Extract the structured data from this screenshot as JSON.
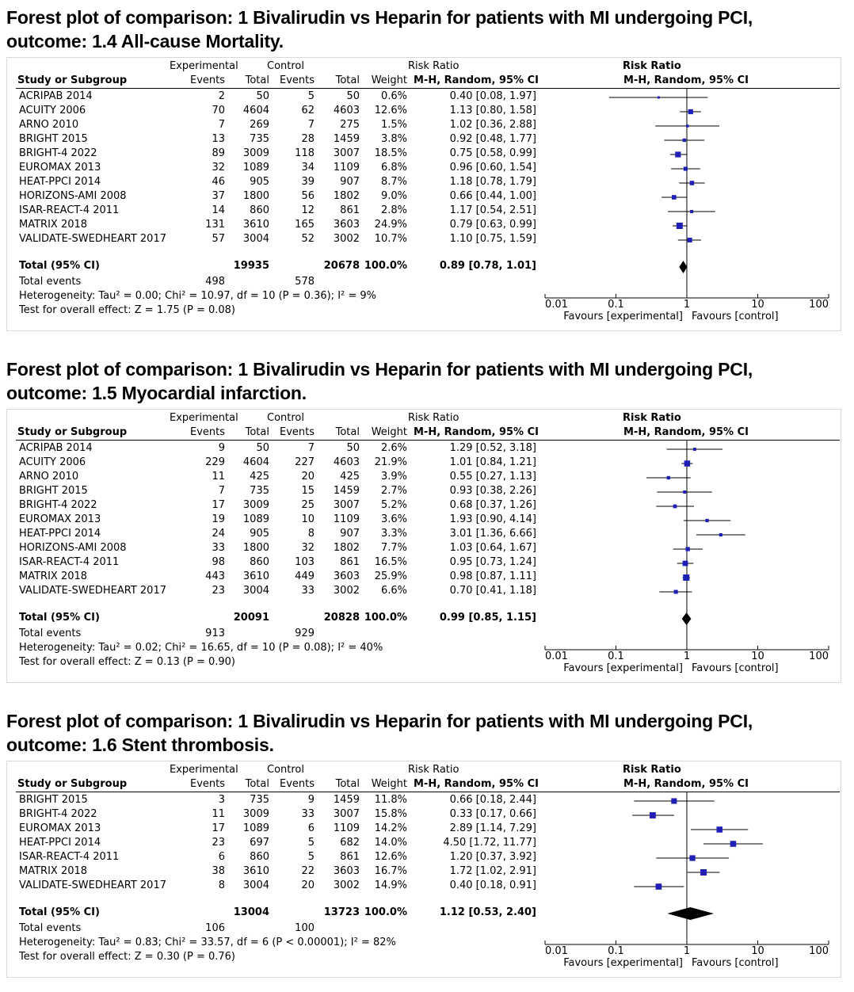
{
  "headers": {
    "experimental": "Experimental",
    "control": "Control",
    "risk_ratio": "Risk Ratio",
    "study": "Study or Subgroup",
    "events": "Events",
    "total": "Total",
    "weight": "Weight",
    "method": "M-H, Random, 95% CI",
    "favours_exp": "Favours [experimental]",
    "favours_ctrl": "Favours [control]",
    "total_events_label": "Total events",
    "axis_ticks": [
      "0.01",
      "0.1",
      "1",
      "10",
      "100"
    ]
  },
  "plots": [
    {
      "title_line1": "Forest plot of comparison: 1 Bivalirudin vs Heparin for patients with MI undergoing PCI,",
      "title_line2": "outcome: 1.4 All-cause Mortality.",
      "studies": [
        {
          "name": "ACRIPAB 2014",
          "exp_events": "2",
          "exp_total": "50",
          "ctrl_events": "5",
          "ctrl_total": "50",
          "weight": "0.6%",
          "ci_text": "0.40 [0.08, 1.97]"
        },
        {
          "name": "ACUITY 2006",
          "exp_events": "70",
          "exp_total": "4604",
          "ctrl_events": "62",
          "ctrl_total": "4603",
          "weight": "12.6%",
          "ci_text": "1.13 [0.80, 1.58]"
        },
        {
          "name": "ARNO 2010",
          "exp_events": "7",
          "exp_total": "269",
          "ctrl_events": "7",
          "ctrl_total": "275",
          "weight": "1.5%",
          "ci_text": "1.02 [0.36, 2.88]"
        },
        {
          "name": "BRIGHT 2015",
          "exp_events": "13",
          "exp_total": "735",
          "ctrl_events": "28",
          "ctrl_total": "1459",
          "weight": "3.8%",
          "ci_text": "0.92 [0.48, 1.77]"
        },
        {
          "name": "BRIGHT-4 2022",
          "exp_events": "89",
          "exp_total": "3009",
          "ctrl_events": "118",
          "ctrl_total": "3007",
          "weight": "18.5%",
          "ci_text": "0.75 [0.58, 0.99]"
        },
        {
          "name": "EUROMAX 2013",
          "exp_events": "32",
          "exp_total": "1089",
          "ctrl_events": "34",
          "ctrl_total": "1109",
          "weight": "6.8%",
          "ci_text": "0.96 [0.60, 1.54]"
        },
        {
          "name": "HEAT-PPCI 2014",
          "exp_events": "46",
          "exp_total": "905",
          "ctrl_events": "39",
          "ctrl_total": "907",
          "weight": "8.7%",
          "ci_text": "1.18 [0.78, 1.79]"
        },
        {
          "name": "HORIZONS-AMI 2008",
          "exp_events": "37",
          "exp_total": "1800",
          "ctrl_events": "56",
          "ctrl_total": "1802",
          "weight": "9.0%",
          "ci_text": "0.66 [0.44, 1.00]"
        },
        {
          "name": "ISAR-REACT-4 2011",
          "exp_events": "14",
          "exp_total": "860",
          "ctrl_events": "12",
          "ctrl_total": "861",
          "weight": "2.8%",
          "ci_text": "1.17 [0.54, 2.51]"
        },
        {
          "name": "MATRIX 2018",
          "exp_events": "131",
          "exp_total": "3610",
          "ctrl_events": "165",
          "ctrl_total": "3603",
          "weight": "24.9%",
          "ci_text": "0.79 [0.63, 0.99]"
        },
        {
          "name": "VALIDATE-SWEDHEART 2017",
          "exp_events": "57",
          "exp_total": "3004",
          "ctrl_events": "52",
          "ctrl_total": "3002",
          "weight": "10.7%",
          "ci_text": "1.10 [0.75, 1.59]"
        }
      ],
      "total": {
        "label": "Total (95% CI)",
        "exp_total": "19935",
        "ctrl_total": "20678",
        "weight": "100.0%",
        "ci_text": "0.89 [0.78, 1.01]"
      },
      "total_events": {
        "exp": "498",
        "ctrl": "578"
      },
      "heterogeneity": "Heterogeneity: Tau² = 0.00; Chi² = 10.97, df = 10 (P = 0.36); I² = 9%",
      "overall_effect": "Test for overall effect: Z = 1.75 (P = 0.08)"
    },
    {
      "title_line1": "Forest plot of comparison: 1 Bivalirudin vs Heparin for patients with MI undergoing PCI,",
      "title_line2": "outcome: 1.5 Myocardial infarction.",
      "studies": [
        {
          "name": "ACRIPAB 2014",
          "exp_events": "9",
          "exp_total": "50",
          "ctrl_events": "7",
          "ctrl_total": "50",
          "weight": "2.6%",
          "ci_text": "1.29 [0.52, 3.18]"
        },
        {
          "name": "ACUITY 2006",
          "exp_events": "229",
          "exp_total": "4604",
          "ctrl_events": "227",
          "ctrl_total": "4603",
          "weight": "21.9%",
          "ci_text": "1.01 [0.84, 1.21]"
        },
        {
          "name": "ARNO 2010",
          "exp_events": "11",
          "exp_total": "425",
          "ctrl_events": "20",
          "ctrl_total": "425",
          "weight": "3.9%",
          "ci_text": "0.55 [0.27, 1.13]"
        },
        {
          "name": "BRIGHT 2015",
          "exp_events": "7",
          "exp_total": "735",
          "ctrl_events": "15",
          "ctrl_total": "1459",
          "weight": "2.7%",
          "ci_text": "0.93 [0.38, 2.26]"
        },
        {
          "name": "BRIGHT-4 2022",
          "exp_events": "17",
          "exp_total": "3009",
          "ctrl_events": "25",
          "ctrl_total": "3007",
          "weight": "5.2%",
          "ci_text": "0.68 [0.37, 1.26]"
        },
        {
          "name": "EUROMAX 2013",
          "exp_events": "19",
          "exp_total": "1089",
          "ctrl_events": "10",
          "ctrl_total": "1109",
          "weight": "3.6%",
          "ci_text": "1.93 [0.90, 4.14]"
        },
        {
          "name": "HEAT-PPCI 2014",
          "exp_events": "24",
          "exp_total": "905",
          "ctrl_events": "8",
          "ctrl_total": "907",
          "weight": "3.3%",
          "ci_text": "3.01 [1.36, 6.66]"
        },
        {
          "name": "HORIZONS-AMI 2008",
          "exp_events": "33",
          "exp_total": "1800",
          "ctrl_events": "32",
          "ctrl_total": "1802",
          "weight": "7.7%",
          "ci_text": "1.03 [0.64, 1.67]"
        },
        {
          "name": "ISAR-REACT-4 2011",
          "exp_events": "98",
          "exp_total": "860",
          "ctrl_events": "103",
          "ctrl_total": "861",
          "weight": "16.5%",
          "ci_text": "0.95 [0.73, 1.24]"
        },
        {
          "name": "MATRIX 2018",
          "exp_events": "443",
          "exp_total": "3610",
          "ctrl_events": "449",
          "ctrl_total": "3603",
          "weight": "25.9%",
          "ci_text": "0.98 [0.87, 1.11]"
        },
        {
          "name": "VALIDATE-SWEDHEART 2017",
          "exp_events": "23",
          "exp_total": "3004",
          "ctrl_events": "33",
          "ctrl_total": "3002",
          "weight": "6.6%",
          "ci_text": "0.70 [0.41, 1.18]"
        }
      ],
      "total": {
        "label": "Total (95% CI)",
        "exp_total": "20091",
        "ctrl_total": "20828",
        "weight": "100.0%",
        "ci_text": "0.99 [0.85, 1.15]"
      },
      "total_events": {
        "exp": "913",
        "ctrl": "929"
      },
      "heterogeneity": "Heterogeneity: Tau² = 0.02; Chi² = 16.65, df = 10 (P = 0.08); I² = 40%",
      "overall_effect": "Test for overall effect: Z = 0.13 (P = 0.90)"
    },
    {
      "title_line1": "Forest plot of comparison: 1 Bivalirudin vs Heparin for patients with MI undergoing PCI,",
      "title_line2": "outcome: 1.6 Stent thrombosis.",
      "studies": [
        {
          "name": "BRIGHT 2015",
          "exp_events": "3",
          "exp_total": "735",
          "ctrl_events": "9",
          "ctrl_total": "1459",
          "weight": "11.8%",
          "ci_text": "0.66 [0.18, 2.44]"
        },
        {
          "name": "BRIGHT-4 2022",
          "exp_events": "11",
          "exp_total": "3009",
          "ctrl_events": "33",
          "ctrl_total": "3007",
          "weight": "15.8%",
          "ci_text": "0.33 [0.17, 0.66]"
        },
        {
          "name": "EUROMAX 2013",
          "exp_events": "17",
          "exp_total": "1089",
          "ctrl_events": "6",
          "ctrl_total": "1109",
          "weight": "14.2%",
          "ci_text": "2.89 [1.14, 7.29]"
        },
        {
          "name": "HEAT-PPCI 2014",
          "exp_events": "23",
          "exp_total": "697",
          "ctrl_events": "5",
          "ctrl_total": "682",
          "weight": "14.0%",
          "ci_text": "4.50 [1.72, 11.77]"
        },
        {
          "name": "ISAR-REACT-4 2011",
          "exp_events": "6",
          "exp_total": "860",
          "ctrl_events": "5",
          "ctrl_total": "861",
          "weight": "12.6%",
          "ci_text": "1.20 [0.37, 3.92]"
        },
        {
          "name": "MATRIX 2018",
          "exp_events": "38",
          "exp_total": "3610",
          "ctrl_events": "22",
          "ctrl_total": "3603",
          "weight": "16.7%",
          "ci_text": "1.72 [1.02, 2.91]"
        },
        {
          "name": "VALIDATE-SWEDHEART 2017",
          "exp_events": "8",
          "exp_total": "3004",
          "ctrl_events": "20",
          "ctrl_total": "3002",
          "weight": "14.9%",
          "ci_text": "0.40 [0.18, 0.91]"
        }
      ],
      "total": {
        "label": "Total (95% CI)",
        "exp_total": "13004",
        "ctrl_total": "13723",
        "weight": "100.0%",
        "ci_text": "1.12 [0.53, 2.40]"
      },
      "total_events": {
        "exp": "106",
        "ctrl": "100"
      },
      "heterogeneity": "Heterogeneity: Tau² = 0.83; Chi² = 33.57, df = 6 (P < 0.00001); I² = 82%",
      "overall_effect": "Test for overall effect: Z = 0.30 (P = 0.76)"
    }
  ],
  "chart_data": [
    {
      "type": "forest",
      "title": "Forest plot of comparison: 1 Bivalirudin vs Heparin for patients with MI undergoing PCI, outcome: 1.4 All-cause Mortality.",
      "xscale": "log",
      "xlim": [
        0.01,
        100
      ],
      "xticks": [
        0.01,
        0.1,
        1,
        10,
        100
      ],
      "xlabel_left": "Favours [experimental]",
      "xlabel_right": "Favours [control]",
      "rr": [
        0.4,
        1.13,
        1.02,
        0.92,
        0.75,
        0.96,
        1.18,
        0.66,
        1.17,
        0.79,
        1.1
      ],
      "lower": [
        0.08,
        0.8,
        0.36,
        0.48,
        0.58,
        0.6,
        0.78,
        0.44,
        0.54,
        0.63,
        0.75
      ],
      "upper": [
        1.97,
        1.58,
        2.88,
        1.77,
        0.99,
        1.54,
        1.79,
        1.0,
        2.51,
        0.99,
        1.59
      ],
      "weights": [
        0.6,
        12.6,
        1.5,
        3.8,
        18.5,
        6.8,
        8.7,
        9.0,
        2.8,
        24.9,
        10.7
      ],
      "pooled": {
        "rr": 0.89,
        "lower": 0.78,
        "upper": 1.01
      }
    },
    {
      "type": "forest",
      "title": "Forest plot of comparison: 1 Bivalirudin vs Heparin for patients with MI undergoing PCI, outcome: 1.5 Myocardial infarction.",
      "xscale": "log",
      "xlim": [
        0.01,
        100
      ],
      "xticks": [
        0.01,
        0.1,
        1,
        10,
        100
      ],
      "xlabel_left": "Favours [experimental]",
      "xlabel_right": "Favours [control]",
      "rr": [
        1.29,
        1.01,
        0.55,
        0.93,
        0.68,
        1.93,
        3.01,
        1.03,
        0.95,
        0.98,
        0.7
      ],
      "lower": [
        0.52,
        0.84,
        0.27,
        0.38,
        0.37,
        0.9,
        1.36,
        0.64,
        0.73,
        0.87,
        0.41
      ],
      "upper": [
        3.18,
        1.21,
        1.13,
        2.26,
        1.26,
        4.14,
        6.66,
        1.67,
        1.24,
        1.11,
        1.18
      ],
      "weights": [
        2.6,
        21.9,
        3.9,
        2.7,
        5.2,
        3.6,
        3.3,
        7.7,
        16.5,
        25.9,
        6.6
      ],
      "pooled": {
        "rr": 0.99,
        "lower": 0.85,
        "upper": 1.15
      }
    },
    {
      "type": "forest",
      "title": "Forest plot of comparison: 1 Bivalirudin vs Heparin for patients with MI undergoing PCI, outcome: 1.6 Stent thrombosis.",
      "xscale": "log",
      "xlim": [
        0.01,
        100
      ],
      "xticks": [
        0.01,
        0.1,
        1,
        10,
        100
      ],
      "xlabel_left": "Favours [experimental]",
      "xlabel_right": "Favours [control]",
      "rr": [
        0.66,
        0.33,
        2.89,
        4.5,
        1.2,
        1.72,
        0.4
      ],
      "lower": [
        0.18,
        0.17,
        1.14,
        1.72,
        0.37,
        1.02,
        0.18
      ],
      "upper": [
        2.44,
        0.66,
        7.29,
        11.77,
        3.92,
        2.91,
        0.91
      ],
      "weights": [
        11.8,
        15.8,
        14.2,
        14.0,
        12.6,
        16.7,
        14.9
      ],
      "pooled": {
        "rr": 1.12,
        "lower": 0.53,
        "upper": 2.4
      }
    }
  ],
  "colors": {
    "marker": "#1f1fb8",
    "line": "#000000",
    "panel_border": "#d9d9d9"
  }
}
